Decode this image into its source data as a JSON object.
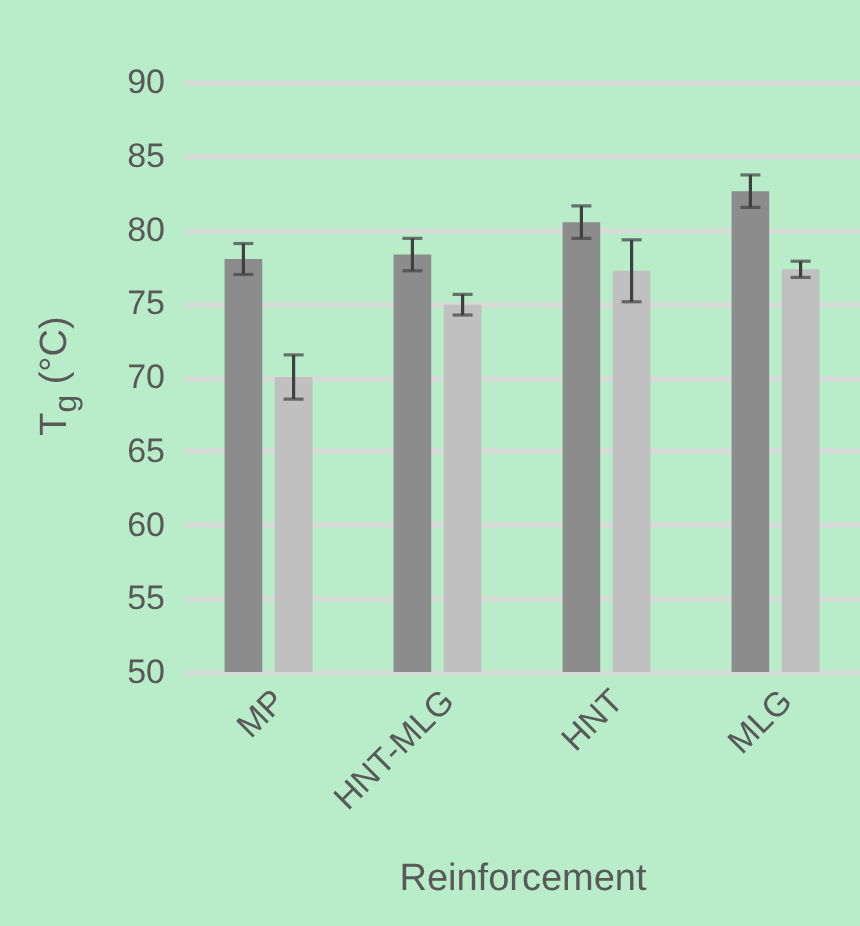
{
  "chart_data": {
    "type": "bar",
    "xlabel": "Reinforcement",
    "ylabel": "T$_{g}$ (°C)",
    "categories": [
      "MP",
      "HNT-MLG",
      "HNT",
      "MLG"
    ],
    "series": [
      {
        "color": "#8c8c8c",
        "values": [
          78.0,
          78.3,
          80.5,
          82.6
        ],
        "errors": [
          1.05,
          1.1,
          1.1,
          1.1
        ]
      },
      {
        "color": "#c0c0c0",
        "values": [
          70.0,
          74.9,
          77.2,
          77.3
        ],
        "errors": [
          1.5,
          0.7,
          2.1,
          0.55
        ]
      }
    ],
    "ylim": [
      50,
      90
    ],
    "yticks": [
      50,
      55,
      60,
      65,
      70,
      75,
      80,
      85,
      90
    ],
    "grid": "y",
    "legend": false
  }
}
